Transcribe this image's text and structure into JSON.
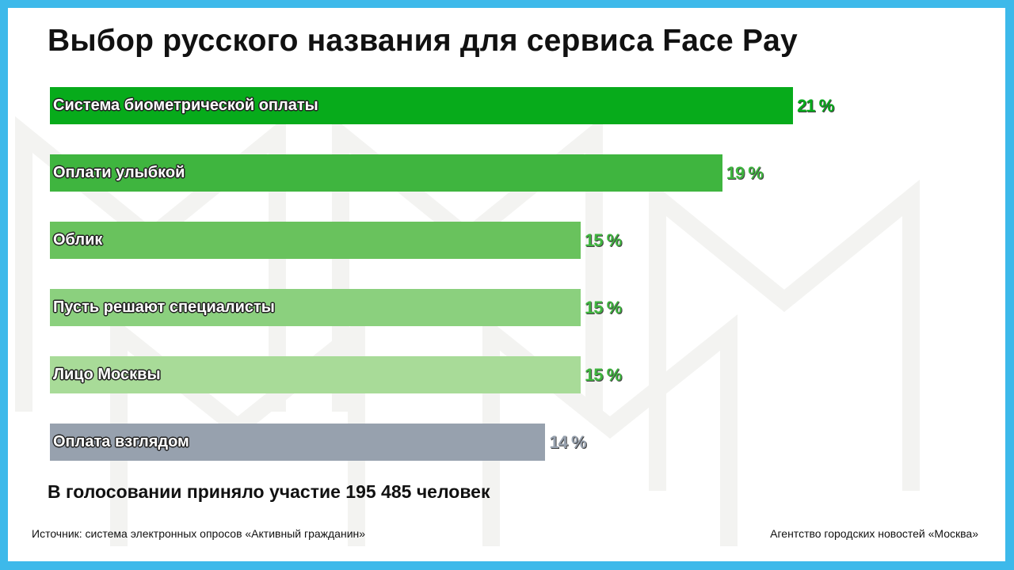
{
  "title": "Выбор русского названия для сервиса Face Pay",
  "chart_data": {
    "type": "bar",
    "orientation": "horizontal",
    "title": "Выбор русского названия для сервиса Face Pay",
    "categories": [
      "Система биометрической оплаты",
      "Оплати улыбкой",
      "Облик",
      "Пусть решают специалисты",
      "Лицо Москвы",
      "Оплата взглядом"
    ],
    "values": [
      21,
      19,
      15,
      15,
      15,
      14
    ],
    "value_labels": [
      "21 %",
      "19 %",
      "15 %",
      "15 %",
      "15 %",
      "14 %"
    ],
    "colors": [
      "#07ab1b",
      "#3fb53f",
      "#69c25d",
      "#8bd07e",
      "#a8db98",
      "#97a1ae"
    ],
    "label_colors": [
      "#07ab1b",
      "#3fb53f",
      "#3fb53f",
      "#3fb53f",
      "#3fb53f",
      "#97a1ae"
    ],
    "xlabel": "",
    "ylabel": "",
    "grid": false
  },
  "total": "В голосовании приняло участие 195 485 человек",
  "source": "Источник: система электронных опросов «Активный гражданин»",
  "agency": "Агентство городских новостей «Москва»",
  "colors": {
    "frame": "#3db9ea",
    "background": "#ffffff"
  }
}
